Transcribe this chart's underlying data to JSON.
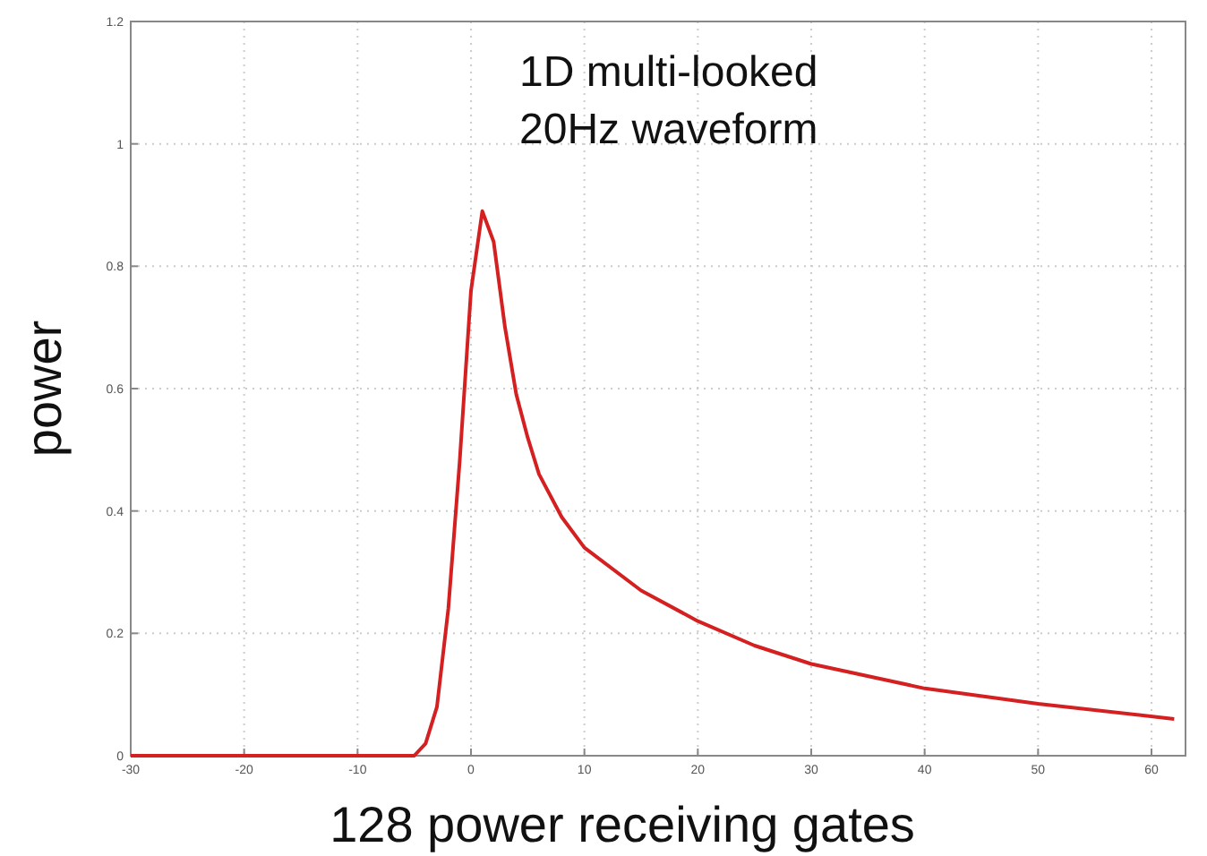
{
  "chart_data": {
    "type": "line",
    "xlabel": "128 power receiving gates",
    "ylabel": "power",
    "annotations": [
      "1D multi-looked 20Hz waveform"
    ],
    "x": [
      -30,
      -5,
      -4,
      -3,
      -2,
      -1,
      0,
      1,
      2,
      3,
      4,
      5,
      6,
      8,
      10,
      15,
      20,
      25,
      30,
      40,
      50,
      62
    ],
    "series": [
      {
        "color": "#d42020",
        "values": [
          0,
          0,
          0.02,
          0.08,
          0.24,
          0.48,
          0.76,
          0.89,
          0.84,
          0.7,
          0.59,
          0.52,
          0.46,
          0.39,
          0.34,
          0.27,
          0.22,
          0.18,
          0.15,
          0.11,
          0.085,
          0.06
        ]
      }
    ],
    "xlim": [
      -30,
      63
    ],
    "xticks": [
      -30,
      -20,
      -10,
      0,
      10,
      20,
      30,
      40,
      50,
      60
    ],
    "ylim": [
      0,
      1.2
    ],
    "yticks": [
      0,
      0.2,
      0.4,
      0.6,
      0.8,
      1,
      1.2
    ],
    "grid": true
  }
}
